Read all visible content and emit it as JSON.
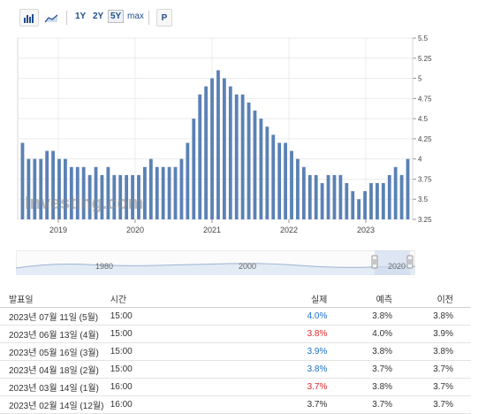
{
  "toolbar": {
    "bar_icon": "bar-chart-icon",
    "area_icon": "area-chart-icon",
    "ranges": [
      "1Y",
      "2Y",
      "5Y",
      "max"
    ],
    "active_range": "5Y",
    "print_label": "P"
  },
  "chart_data": {
    "type": "bar",
    "watermark": "Investing.com",
    "x_tick_labels": [
      "2019",
      "2020",
      "2021",
      "2022",
      "2023"
    ],
    "y_tick_labels": [
      "5.5",
      "5.25",
      "5",
      "4.75",
      "4.5",
      "4.25",
      "4",
      "3.75",
      "3.5",
      "3.25"
    ],
    "ylim": [
      3.25,
      5.5
    ],
    "grid": true,
    "bar_color": "#5b81b5",
    "values": [
      4.2,
      4.0,
      4.0,
      4.0,
      4.1,
      4.1,
      4.0,
      4.0,
      3.9,
      3.9,
      3.9,
      3.8,
      3.9,
      3.8,
      3.9,
      3.8,
      3.8,
      3.8,
      3.8,
      3.8,
      3.9,
      4.0,
      3.9,
      3.9,
      3.9,
      3.9,
      4.0,
      4.2,
      4.5,
      4.8,
      4.9,
      5.0,
      5.1,
      5.0,
      4.9,
      4.8,
      4.8,
      4.7,
      4.6,
      4.5,
      4.4,
      4.3,
      4.2,
      4.2,
      4.1,
      4.0,
      3.9,
      3.8,
      3.8,
      3.7,
      3.8,
      3.8,
      3.8,
      3.7,
      3.6,
      3.5,
      3.6,
      3.7,
      3.7,
      3.7,
      3.8,
      3.9,
      3.8,
      4.0
    ]
  },
  "navigator": {
    "labels": [
      "1980",
      "2000",
      "2020"
    ]
  },
  "table": {
    "headers": [
      "발표일",
      "시간",
      "실제",
      "예측",
      "이전"
    ],
    "rows": [
      {
        "date": "2023년 07월 11일 (5월)",
        "time": "15:00",
        "actual": "4.0%",
        "actual_color": "#1a6fc9",
        "forecast": "3.8%",
        "previous": "3.8%"
      },
      {
        "date": "2023년 06월 13일 (4월)",
        "time": "15:00",
        "actual": "3.8%",
        "actual_color": "#e0262b",
        "forecast": "4.0%",
        "previous": "3.9%"
      },
      {
        "date": "2023년 05월 16일 (3월)",
        "time": "15:00",
        "actual": "3.9%",
        "actual_color": "#1a6fc9",
        "forecast": "3.8%",
        "previous": "3.8%"
      },
      {
        "date": "2023년 04월 18일 (2월)",
        "time": "15:00",
        "actual": "3.8%",
        "actual_color": "#1a6fc9",
        "forecast": "3.7%",
        "previous": "3.7%"
      },
      {
        "date": "2023년 03월 14일 (1월)",
        "time": "16:00",
        "actual": "3.7%",
        "actual_color": "#e0262b",
        "forecast": "3.8%",
        "previous": "3.7%"
      },
      {
        "date": "2023년 02월 14일 (12월)",
        "time": "16:00",
        "actual": "3.7%",
        "actual_color": "#333333",
        "forecast": "3.7%",
        "previous": "3.7%"
      }
    ]
  }
}
